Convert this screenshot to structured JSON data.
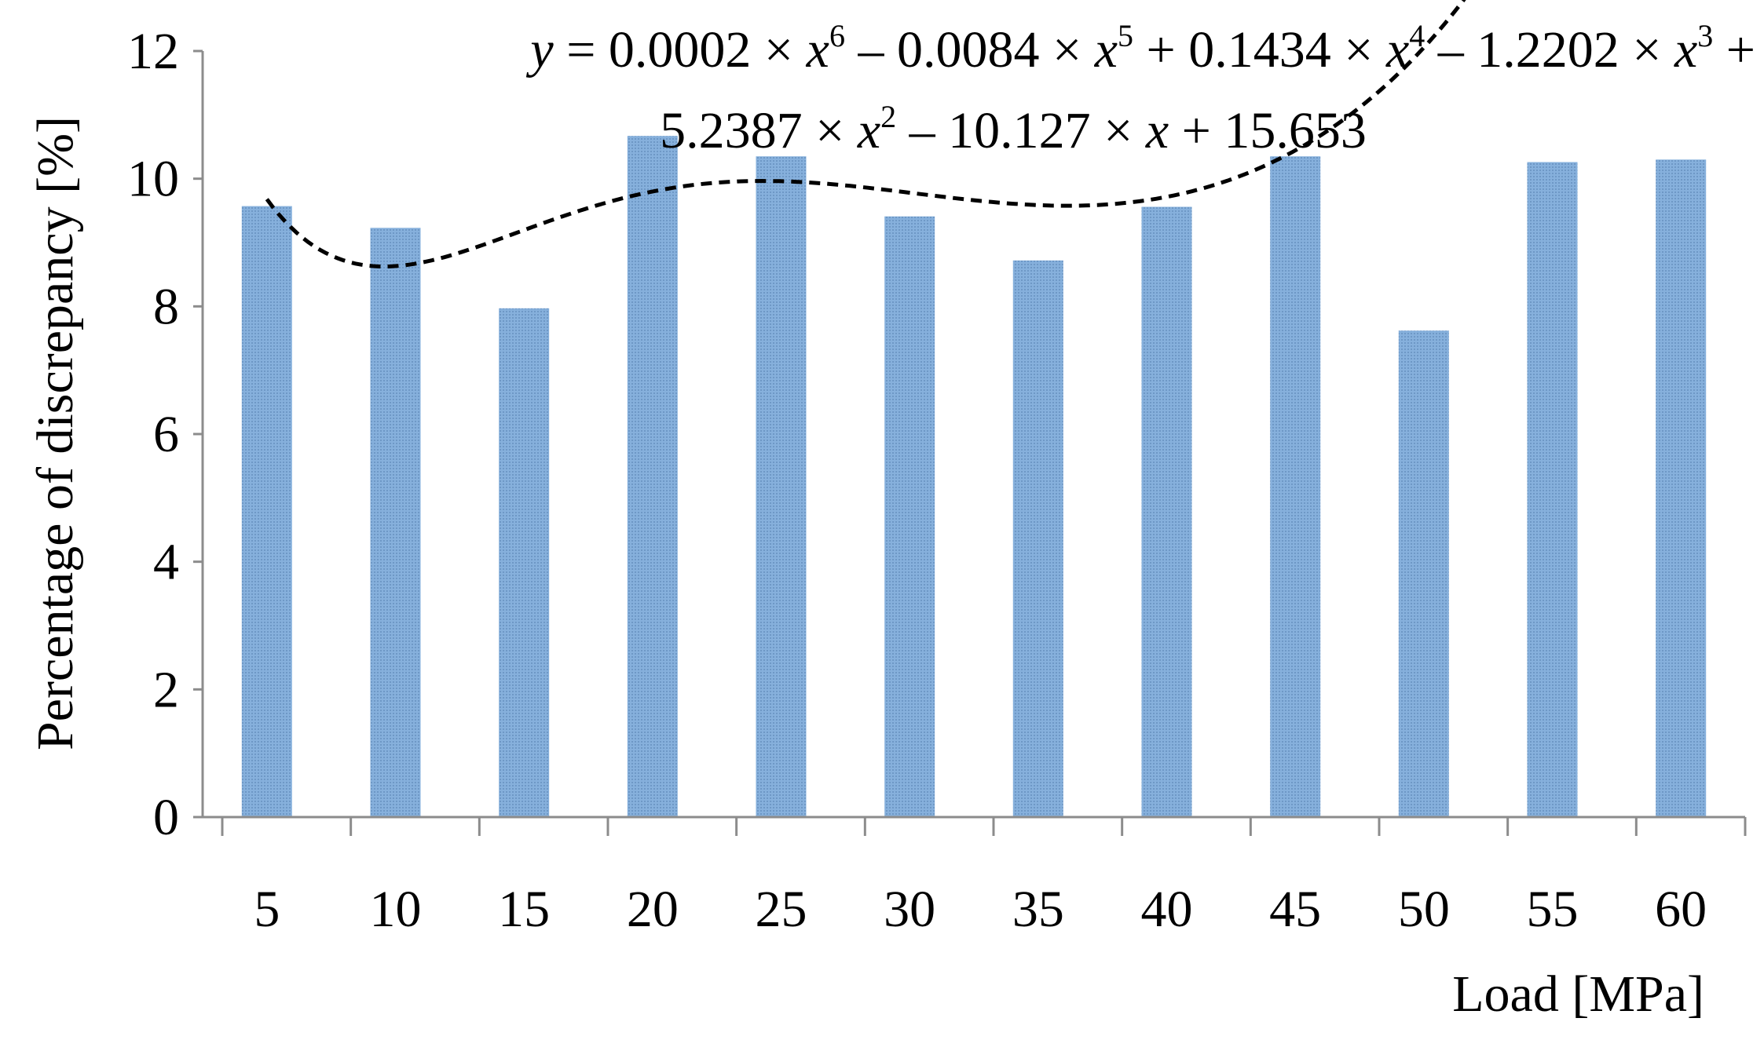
{
  "chart_data": {
    "type": "bar",
    "categories": [
      "5",
      "10",
      "15",
      "20",
      "25",
      "30",
      "35",
      "40",
      "45",
      "50",
      "55",
      "60"
    ],
    "series": [
      {
        "values": [
          9.57,
          9.23,
          7.97,
          10.67,
          10.35,
          9.41,
          8.72,
          9.56,
          10.35,
          7.62,
          10.26,
          10.3
        ]
      }
    ],
    "xlabel": "Load [MPa]",
    "ylabel": "Percentage of discrepancy [%]",
    "ylim": [
      0,
      12
    ],
    "yticks": [
      "0",
      "2",
      "4",
      "6",
      "8",
      "10",
      "12"
    ],
    "bar_color": "#7fa9d6",
    "grid": false,
    "legend": "none",
    "trendline": {
      "type": "polynomial",
      "order": 6,
      "style": "dashed",
      "color": "#000000",
      "coefficients": [
        0.0002,
        -0.0084,
        0.1434,
        -1.2202,
        5.2387,
        -10.127,
        15.653
      ],
      "equation_line1": {
        "y": "y",
        "t1": " = 0.0002 × ",
        "x1": "x",
        "e1": "6",
        "t2": " – 0.0084 × ",
        "x2": "x",
        "e2": "5",
        "t3": " + 0.1434 × ",
        "x3": "x",
        "e3": "4",
        "t4": " – 1.2202 × ",
        "x4": "x",
        "e4": "3",
        "t5": " +"
      },
      "equation_line2": {
        "t1": "5.2387 × ",
        "x1": "x",
        "e1": "2",
        "t2": " – 10.127 × ",
        "x2": "x",
        "t3": " + 15.653"
      }
    }
  }
}
